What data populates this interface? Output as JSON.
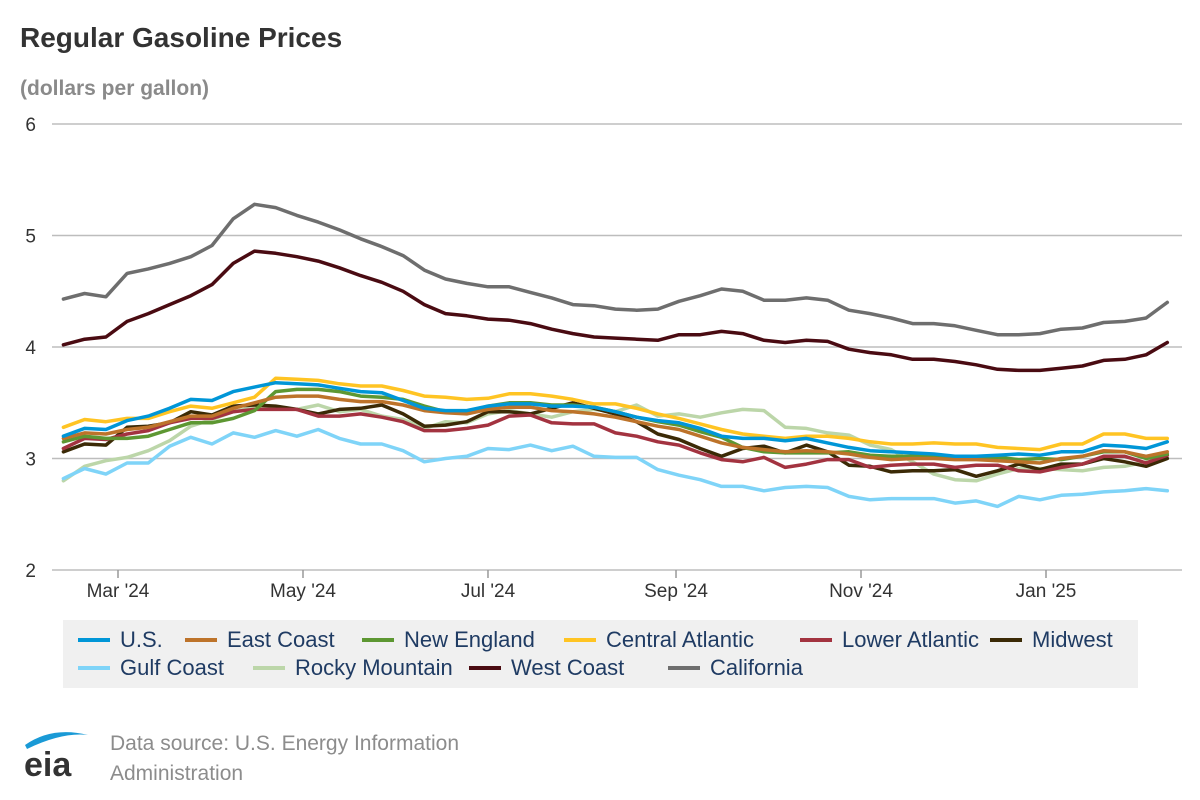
{
  "chart_data": {
    "type": "line",
    "title": "Regular Gasoline Prices",
    "subtitle": "(dollars per gallon)",
    "xlabel": "",
    "ylabel": "",
    "ylim": [
      2,
      6
    ],
    "yticks": [
      2,
      3,
      4,
      5,
      6
    ],
    "xticks": [
      {
        "date": "2024-03-01",
        "label": "Mar '24"
      },
      {
        "date": "2024-05-01",
        "label": "May '24"
      },
      {
        "date": "2024-07-01",
        "label": "Jul '24"
      },
      {
        "date": "2024-09-01",
        "label": "Sep '24"
      },
      {
        "date": "2024-11-01",
        "label": "Nov '24"
      },
      {
        "date": "2025-01-01",
        "label": "Jan '25"
      }
    ],
    "grid": "horizontal",
    "legend_placement": "bottom",
    "x": [
      "2024-02-12",
      "2024-02-19",
      "2024-02-26",
      "2024-03-04",
      "2024-03-11",
      "2024-03-18",
      "2024-03-25",
      "2024-04-01",
      "2024-04-08",
      "2024-04-15",
      "2024-04-22",
      "2024-04-29",
      "2024-05-06",
      "2024-05-13",
      "2024-05-20",
      "2024-05-27",
      "2024-06-03",
      "2024-06-10",
      "2024-06-17",
      "2024-06-24",
      "2024-07-01",
      "2024-07-08",
      "2024-07-15",
      "2024-07-22",
      "2024-07-29",
      "2024-08-05",
      "2024-08-12",
      "2024-08-19",
      "2024-08-26",
      "2024-09-02",
      "2024-09-09",
      "2024-09-16",
      "2024-09-23",
      "2024-09-30",
      "2024-10-07",
      "2024-10-14",
      "2024-10-21",
      "2024-10-28",
      "2024-11-04",
      "2024-11-11",
      "2024-11-18",
      "2024-11-25",
      "2024-12-02",
      "2024-12-09",
      "2024-12-16",
      "2024-12-23",
      "2024-12-30",
      "2025-01-06",
      "2025-01-13",
      "2025-01-20",
      "2025-01-27",
      "2025-02-03",
      "2025-02-10"
    ],
    "series": [
      {
        "name": "U.S.",
        "color": "#0096d7",
        "values": [
          3.2,
          3.27,
          3.26,
          3.34,
          3.38,
          3.45,
          3.53,
          3.52,
          3.6,
          3.64,
          3.68,
          3.67,
          3.66,
          3.63,
          3.6,
          3.59,
          3.52,
          3.45,
          3.43,
          3.43,
          3.47,
          3.49,
          3.49,
          3.47,
          3.47,
          3.46,
          3.42,
          3.37,
          3.34,
          3.32,
          3.27,
          3.2,
          3.18,
          3.18,
          3.16,
          3.18,
          3.14,
          3.1,
          3.07,
          3.06,
          3.05,
          3.04,
          3.02,
          3.02,
          3.03,
          3.04,
          3.03,
          3.06,
          3.06,
          3.12,
          3.11,
          3.09,
          3.15
        ]
      },
      {
        "name": "East Coast",
        "color": "#bd732a",
        "values": [
          3.18,
          3.23,
          3.22,
          3.26,
          3.28,
          3.33,
          3.38,
          3.38,
          3.45,
          3.5,
          3.55,
          3.56,
          3.56,
          3.53,
          3.51,
          3.51,
          3.48,
          3.43,
          3.41,
          3.4,
          3.44,
          3.46,
          3.46,
          3.43,
          3.42,
          3.4,
          3.37,
          3.33,
          3.29,
          3.26,
          3.2,
          3.14,
          3.1,
          3.08,
          3.06,
          3.07,
          3.06,
          3.04,
          3.01,
          2.99,
          3.0,
          3.0,
          2.99,
          2.99,
          2.98,
          2.97,
          2.96,
          3.0,
          3.02,
          3.07,
          3.06,
          3.02,
          3.06
        ]
      },
      {
        "name": "New England",
        "color": "#5d9732",
        "values": [
          3.15,
          3.2,
          3.18,
          3.18,
          3.2,
          3.26,
          3.32,
          3.32,
          3.36,
          3.43,
          3.6,
          3.62,
          3.62,
          3.6,
          3.56,
          3.55,
          3.53,
          3.47,
          3.42,
          3.42,
          3.47,
          3.5,
          3.5,
          3.48,
          3.48,
          3.46,
          3.42,
          3.37,
          3.33,
          3.3,
          3.24,
          3.19,
          3.1,
          3.06,
          3.05,
          3.05,
          3.05,
          3.06,
          3.03,
          3.02,
          3.02,
          3.02,
          3.02,
          3.01,
          3.01,
          2.99,
          3.0,
          2.99,
          3.02,
          3.06,
          3.06,
          3.0,
          3.04
        ]
      },
      {
        "name": "Central Atlantic",
        "color": "#ffc423",
        "values": [
          3.28,
          3.35,
          3.33,
          3.36,
          3.36,
          3.42,
          3.47,
          3.45,
          3.5,
          3.55,
          3.72,
          3.71,
          3.7,
          3.67,
          3.65,
          3.65,
          3.61,
          3.56,
          3.55,
          3.53,
          3.54,
          3.58,
          3.58,
          3.56,
          3.53,
          3.49,
          3.49,
          3.45,
          3.4,
          3.36,
          3.31,
          3.26,
          3.22,
          3.2,
          3.18,
          3.2,
          3.2,
          3.18,
          3.15,
          3.13,
          3.13,
          3.14,
          3.13,
          3.13,
          3.1,
          3.09,
          3.08,
          3.13,
          3.13,
          3.22,
          3.22,
          3.18,
          3.18
        ]
      },
      {
        "name": "Lower Atlantic",
        "color": "#a33340",
        "values": [
          3.09,
          3.18,
          3.17,
          3.22,
          3.25,
          3.32,
          3.36,
          3.36,
          3.42,
          3.44,
          3.44,
          3.44,
          3.38,
          3.38,
          3.4,
          3.37,
          3.33,
          3.25,
          3.25,
          3.27,
          3.3,
          3.38,
          3.39,
          3.32,
          3.31,
          3.31,
          3.23,
          3.2,
          3.15,
          3.12,
          3.05,
          2.99,
          2.97,
          3.01,
          2.92,
          2.95,
          2.99,
          2.99,
          2.92,
          2.94,
          2.95,
          2.95,
          2.92,
          2.94,
          2.94,
          2.89,
          2.88,
          2.92,
          2.95,
          3.02,
          3.02,
          2.96,
          3.03
        ]
      },
      {
        "name": "Midwest",
        "color": "#3b2a06",
        "values": [
          3.06,
          3.13,
          3.12,
          3.28,
          3.29,
          3.32,
          3.42,
          3.39,
          3.47,
          3.48,
          3.47,
          3.44,
          3.4,
          3.44,
          3.45,
          3.48,
          3.4,
          3.29,
          3.3,
          3.33,
          3.42,
          3.42,
          3.4,
          3.45,
          3.5,
          3.45,
          3.4,
          3.33,
          3.22,
          3.17,
          3.09,
          3.02,
          3.09,
          3.11,
          3.05,
          3.12,
          3.06,
          2.94,
          2.93,
          2.88,
          2.89,
          2.89,
          2.9,
          2.84,
          2.89,
          2.95,
          2.9,
          2.95,
          2.95,
          3.0,
          2.97,
          2.93,
          3.0
        ]
      },
      {
        "name": "Gulf Coast",
        "color": "#7fd4f8",
        "values": [
          2.82,
          2.91,
          2.86,
          2.96,
          2.96,
          3.11,
          3.19,
          3.13,
          3.23,
          3.19,
          3.25,
          3.2,
          3.26,
          3.18,
          3.13,
          3.13,
          3.07,
          2.97,
          3.0,
          3.02,
          3.09,
          3.08,
          3.12,
          3.07,
          3.11,
          3.02,
          3.01,
          3.01,
          2.9,
          2.85,
          2.81,
          2.75,
          2.75,
          2.71,
          2.74,
          2.75,
          2.74,
          2.66,
          2.63,
          2.64,
          2.64,
          2.64,
          2.6,
          2.62,
          2.57,
          2.66,
          2.63,
          2.67,
          2.68,
          2.7,
          2.71,
          2.73,
          2.71
        ]
      },
      {
        "name": "Rocky Mountain",
        "color": "#bcd6a9",
        "values": [
          2.8,
          2.93,
          2.98,
          3.01,
          3.07,
          3.16,
          3.29,
          3.35,
          3.42,
          3.46,
          3.46,
          3.44,
          3.48,
          3.42,
          3.44,
          3.38,
          3.35,
          3.27,
          3.33,
          3.32,
          3.4,
          3.43,
          3.4,
          3.37,
          3.42,
          3.44,
          3.42,
          3.48,
          3.38,
          3.4,
          3.37,
          3.41,
          3.44,
          3.43,
          3.28,
          3.27,
          3.23,
          3.21,
          3.12,
          3.08,
          2.97,
          2.86,
          2.81,
          2.8,
          2.86,
          2.91,
          2.91,
          2.9,
          2.89,
          2.92,
          2.93,
          2.97,
          3.01
        ]
      },
      {
        "name": "West Coast",
        "color": "#4a0b12",
        "values": [
          4.02,
          4.07,
          4.09,
          4.23,
          4.3,
          4.38,
          4.46,
          4.56,
          4.75,
          4.86,
          4.84,
          4.81,
          4.77,
          4.71,
          4.64,
          4.58,
          4.5,
          4.38,
          4.3,
          4.28,
          4.25,
          4.24,
          4.21,
          4.16,
          4.12,
          4.09,
          4.08,
          4.07,
          4.06,
          4.11,
          4.11,
          4.14,
          4.12,
          4.06,
          4.04,
          4.06,
          4.05,
          3.98,
          3.95,
          3.93,
          3.89,
          3.89,
          3.87,
          3.84,
          3.8,
          3.79,
          3.79,
          3.81,
          3.83,
          3.88,
          3.89,
          3.93,
          4.04
        ]
      },
      {
        "name": "California",
        "color": "#6e6e6e",
        "values": [
          4.43,
          4.48,
          4.45,
          4.66,
          4.7,
          4.75,
          4.81,
          4.91,
          5.15,
          5.28,
          5.25,
          5.18,
          5.12,
          5.05,
          4.97,
          4.9,
          4.82,
          4.69,
          4.61,
          4.57,
          4.54,
          4.54,
          4.49,
          4.44,
          4.38,
          4.37,
          4.34,
          4.33,
          4.34,
          4.41,
          4.46,
          4.52,
          4.5,
          4.42,
          4.42,
          4.44,
          4.42,
          4.33,
          4.3,
          4.26,
          4.21,
          4.21,
          4.19,
          4.15,
          4.11,
          4.11,
          4.12,
          4.16,
          4.17,
          4.22,
          4.23,
          4.26,
          4.4
        ]
      }
    ],
    "legend_order": [
      0,
      1,
      2,
      3,
      4,
      5,
      6,
      7,
      8,
      9
    ]
  },
  "footer": {
    "source": "Data source: U.S. Energy Information Administration",
    "logo_text": "eia"
  }
}
